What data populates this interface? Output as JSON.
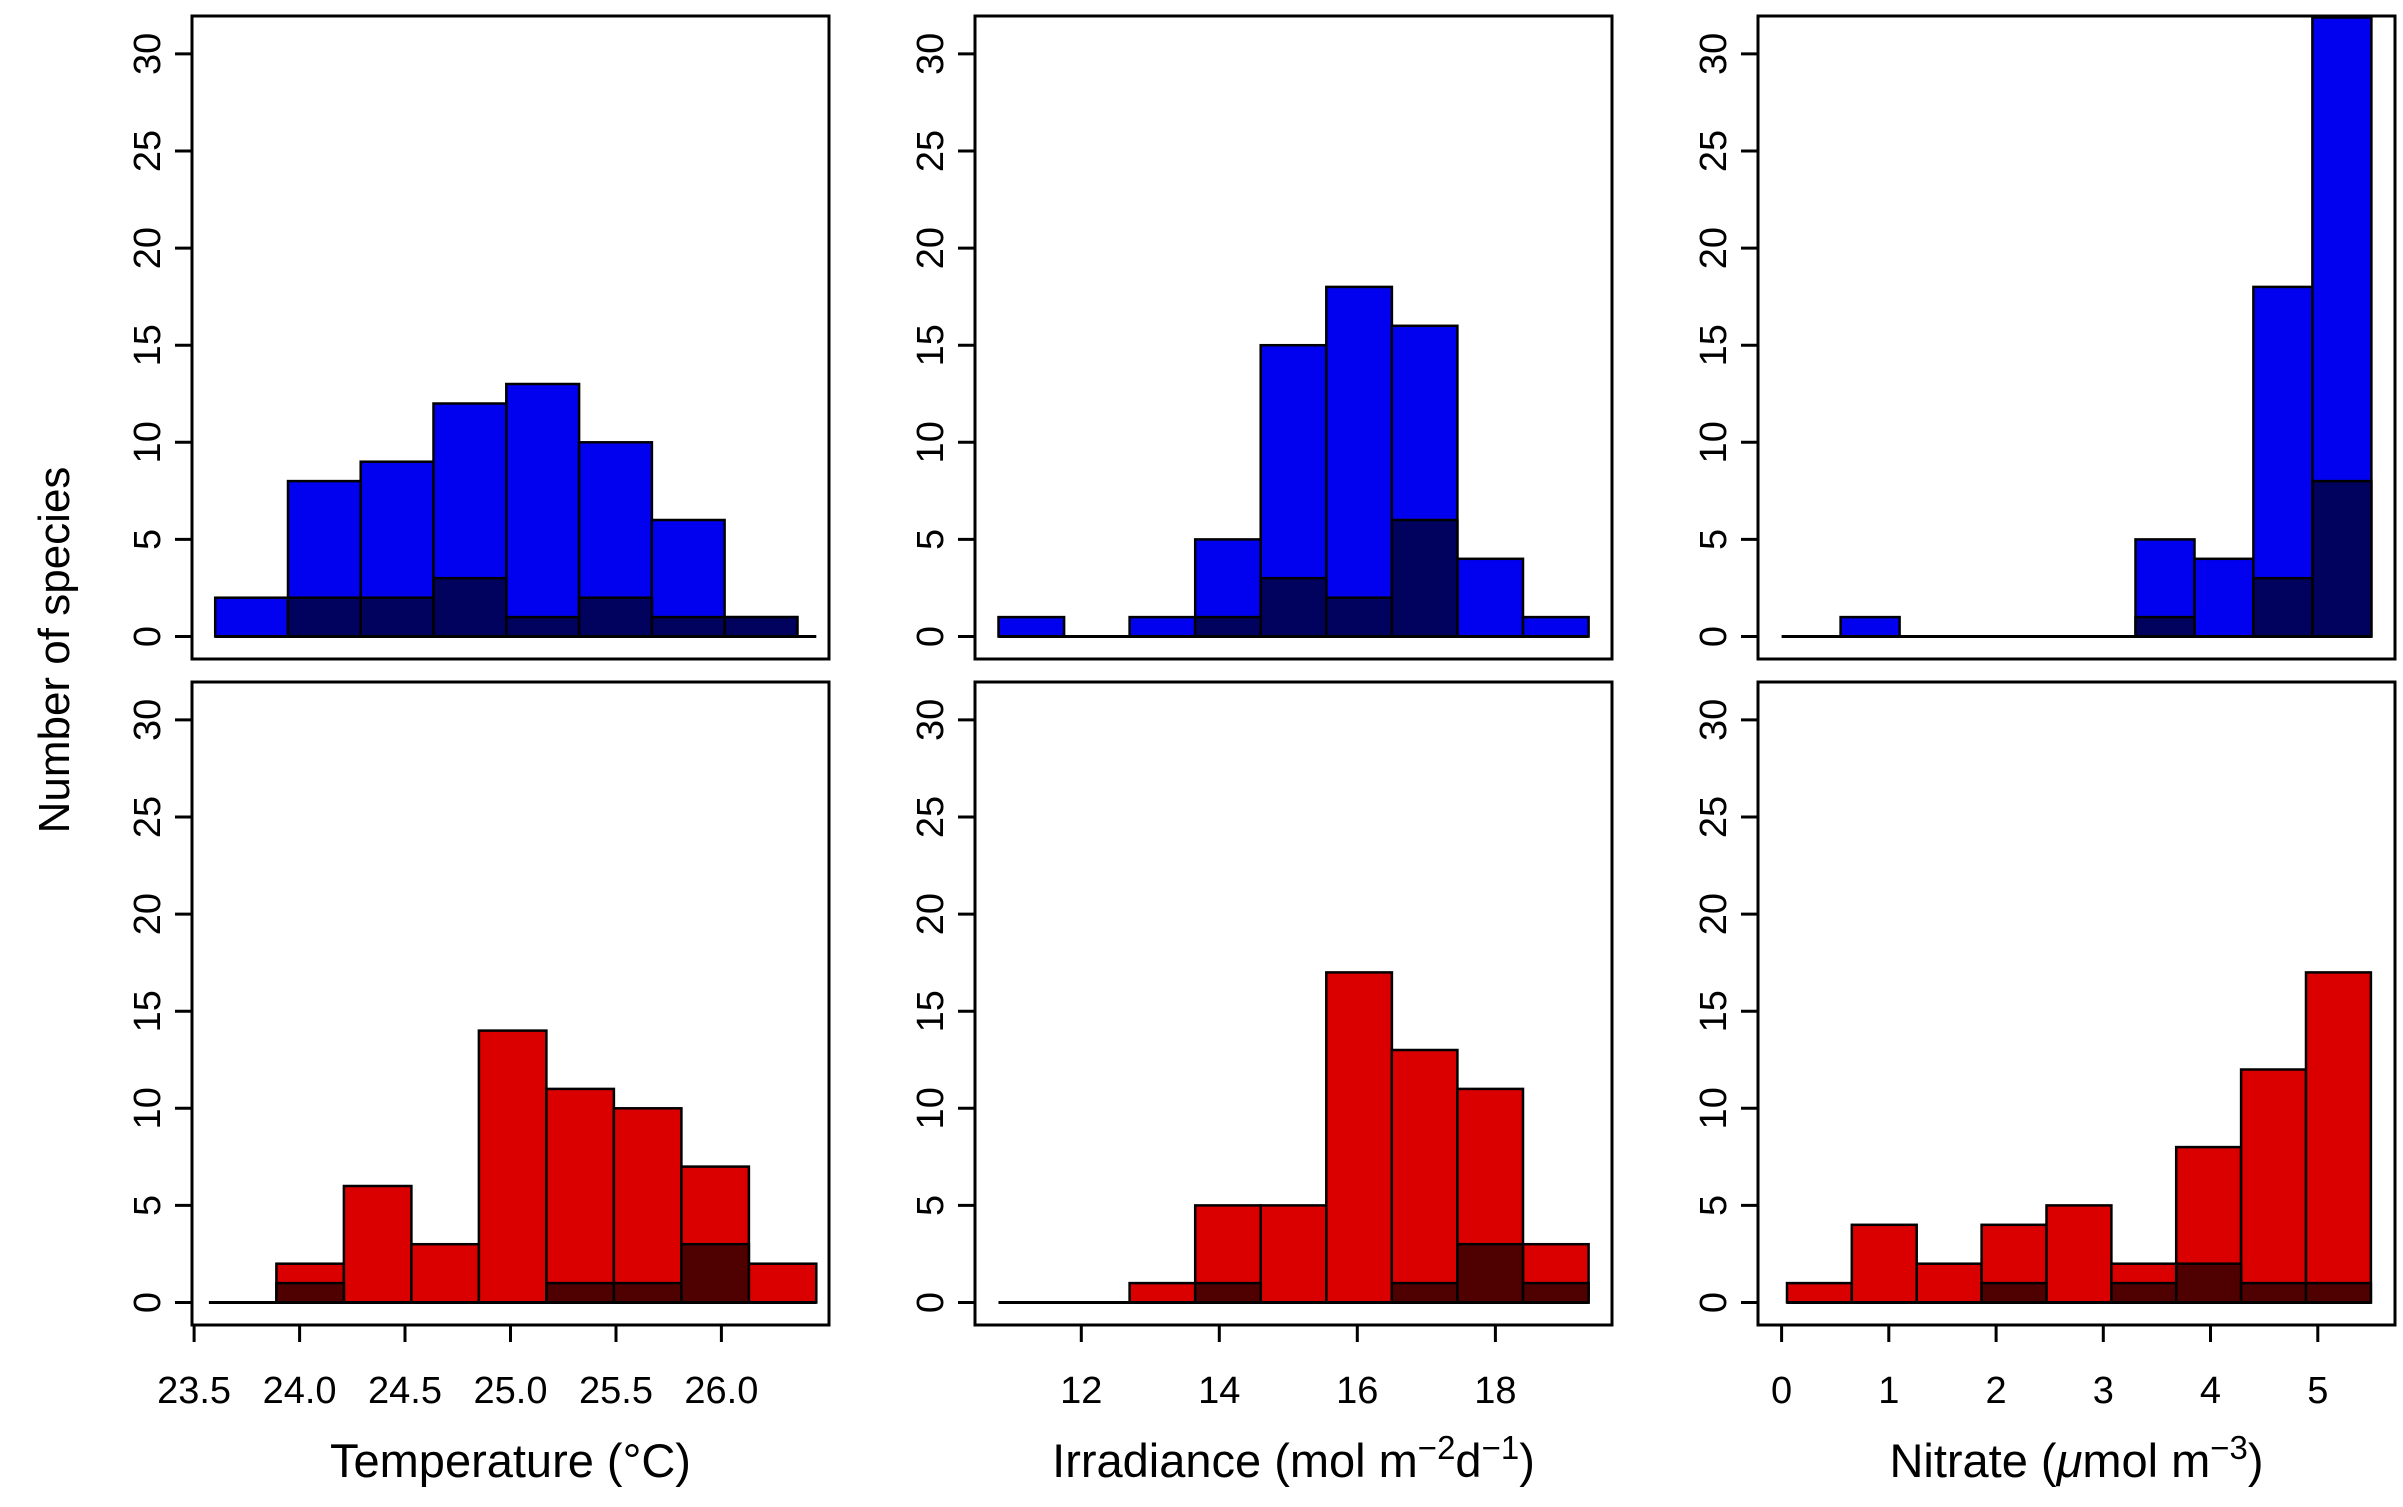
{
  "figure": {
    "ylab": "Number of species",
    "background": "#ffffff"
  },
  "colors": {
    "blue": "#0101F0",
    "navy": "#01015E",
    "red": "#DB0000",
    "darkred": "#4F0000",
    "frame": "#000000",
    "text": "#000000"
  },
  "chart_data": [
    {
      "id": "temperature-top",
      "type": "bar",
      "row": 0,
      "col": 0,
      "xlabel": "",
      "xlabel_segments": [],
      "show_x_axis": false,
      "x_ticks": [],
      "x_tick_labels": [],
      "y_ticks": [
        0,
        5,
        10,
        15,
        20,
        25,
        30
      ],
      "y_tick_labels": [
        "0",
        "5",
        "10",
        "15",
        "20",
        "25",
        "30"
      ],
      "xlim": [
        23.49,
        26.51
      ],
      "ylim": [
        0,
        33
      ],
      "baseline": [
        23.6,
        26.45
      ],
      "series": [
        {
          "name": "blue-histogram",
          "color_key": "blue",
          "bin_start": 23.6,
          "bin_width": 0.345,
          "values": [
            2,
            8,
            9,
            12,
            13,
            10,
            6,
            1
          ]
        },
        {
          "name": "dark-blue-overlay-histogram",
          "color_key": "navy",
          "bin_start": 23.6,
          "bin_width": 0.345,
          "values": [
            0,
            2,
            2,
            3,
            1,
            2,
            1,
            1
          ]
        }
      ]
    },
    {
      "id": "irradiance-top",
      "type": "bar",
      "row": 0,
      "col": 1,
      "xlabel": "",
      "xlabel_segments": [],
      "show_x_axis": false,
      "x_ticks": [],
      "x_tick_labels": [],
      "y_ticks": [
        0,
        5,
        10,
        15,
        20,
        25,
        30
      ],
      "y_tick_labels": [
        "0",
        "5",
        "10",
        "15",
        "20",
        "25",
        "30"
      ],
      "xlim": [
        10.46,
        19.69
      ],
      "ylim": [
        0,
        33
      ],
      "baseline": [
        10.8,
        19.35
      ],
      "series": [
        {
          "name": "blue-histogram",
          "color_key": "blue",
          "bin_start": 10.8,
          "bin_width": 0.95,
          "values": [
            1,
            0,
            1,
            5,
            15,
            18,
            16,
            4,
            1
          ]
        },
        {
          "name": "dark-blue-overlay-histogram",
          "color_key": "navy",
          "bin_start": 10.8,
          "bin_width": 0.95,
          "values": [
            0,
            0,
            0,
            1,
            3,
            2,
            6,
            0,
            0
          ]
        }
      ]
    },
    {
      "id": "nitrate-top",
      "type": "bar",
      "row": 0,
      "col": 2,
      "xlabel": "",
      "xlabel_segments": [],
      "show_x_axis": false,
      "x_ticks": [],
      "x_tick_labels": [],
      "y_ticks": [
        0,
        5,
        10,
        15,
        20,
        25,
        30
      ],
      "y_tick_labels": [
        "0",
        "5",
        "10",
        "15",
        "20",
        "25",
        "30"
      ],
      "xlim": [
        -0.22,
        5.72
      ],
      "ylim": [
        0,
        33
      ],
      "baseline": [
        0.0,
        5.5
      ],
      "series": [
        {
          "name": "blue-histogram",
          "color_key": "blue",
          "bin_start": 0.0,
          "bin_width": 0.55,
          "values": [
            0,
            1,
            0,
            0,
            0,
            0,
            5,
            4,
            18,
            33
          ]
        },
        {
          "name": "dark-blue-overlay-histogram",
          "color_key": "navy",
          "bin_start": 0.0,
          "bin_width": 0.55,
          "values": [
            0,
            0,
            0,
            0,
            0,
            0,
            1,
            0,
            3,
            8
          ]
        }
      ]
    },
    {
      "id": "temperature-bottom",
      "type": "bar",
      "row": 1,
      "col": 0,
      "xlabel": "Temperature (°C)",
      "xlabel_segments": [
        {
          "t": "Temperature (°C)"
        }
      ],
      "show_x_axis": true,
      "x_ticks": [
        23.5,
        24.0,
        24.5,
        25.0,
        25.5,
        26.0
      ],
      "x_tick_labels": [
        "23.5",
        "24.0",
        "24.5",
        "25.0",
        "25.5",
        "26.0"
      ],
      "y_ticks": [
        0,
        5,
        10,
        15,
        20,
        25,
        30
      ],
      "y_tick_labels": [
        "0",
        "5",
        "10",
        "15",
        "20",
        "25",
        "30"
      ],
      "xlim": [
        23.49,
        26.51
      ],
      "ylim": [
        0,
        33
      ],
      "baseline": [
        23.57,
        26.45
      ],
      "series": [
        {
          "name": "red-histogram",
          "color_key": "red",
          "bin_start": 23.57,
          "bin_width": 0.32,
          "values": [
            0,
            2,
            6,
            3,
            14,
            11,
            10,
            7,
            2
          ]
        },
        {
          "name": "dark-red-overlay-histogram",
          "color_key": "darkred",
          "bin_start": 23.57,
          "bin_width": 0.32,
          "values": [
            0,
            1,
            0,
            0,
            0,
            1,
            1,
            3,
            0
          ]
        }
      ]
    },
    {
      "id": "irradiance-bottom",
      "type": "bar",
      "row": 1,
      "col": 1,
      "xlabel": "Irradiance (mol m−2d−1)",
      "xlabel_segments": [
        {
          "t": "Irradiance (mol m"
        },
        {
          "t": "−2",
          "sup": true
        },
        {
          "t": "d"
        },
        {
          "t": "−1",
          "sup": true
        },
        {
          "t": ")"
        }
      ],
      "show_x_axis": true,
      "x_ticks": [
        12,
        14,
        16,
        18
      ],
      "x_tick_labels": [
        "12",
        "14",
        "16",
        "18"
      ],
      "y_ticks": [
        0,
        5,
        10,
        15,
        20,
        25,
        30
      ],
      "y_tick_labels": [
        "0",
        "5",
        "10",
        "15",
        "20",
        "25",
        "30"
      ],
      "xlim": [
        10.46,
        19.69
      ],
      "ylim": [
        0,
        33
      ],
      "baseline": [
        10.8,
        19.35
      ],
      "series": [
        {
          "name": "red-histogram",
          "color_key": "red",
          "bin_start": 10.8,
          "bin_width": 0.95,
          "values": [
            0,
            0,
            1,
            5,
            5,
            17,
            13,
            11,
            3
          ]
        },
        {
          "name": "dark-red-overlay-histogram",
          "color_key": "darkred",
          "bin_start": 10.8,
          "bin_width": 0.95,
          "values": [
            0,
            0,
            0,
            1,
            0,
            0,
            1,
            3,
            1
          ]
        }
      ]
    },
    {
      "id": "nitrate-bottom",
      "type": "bar",
      "row": 1,
      "col": 2,
      "xlabel": "Nitrate (μmol m−3)",
      "xlabel_segments": [
        {
          "t": "Nitrate ("
        },
        {
          "t": "μ",
          "italic": true
        },
        {
          "t": "mol m"
        },
        {
          "t": "−3",
          "sup": true
        },
        {
          "t": ")"
        }
      ],
      "show_x_axis": true,
      "x_ticks": [
        0,
        1,
        2,
        3,
        4,
        5
      ],
      "x_tick_labels": [
        "0",
        "1",
        "2",
        "3",
        "4",
        "5"
      ],
      "y_ticks": [
        0,
        5,
        10,
        15,
        20,
        25,
        30
      ],
      "y_tick_labels": [
        "0",
        "5",
        "10",
        "15",
        "20",
        "25",
        "30"
      ],
      "xlim": [
        -0.22,
        5.72
      ],
      "ylim": [
        0,
        33
      ],
      "baseline": [
        0.05,
        5.495
      ],
      "series": [
        {
          "name": "red-histogram",
          "color_key": "red",
          "bin_start": 0.05,
          "bin_width": 0.605,
          "values": [
            1,
            4,
            2,
            4,
            5,
            2,
            8,
            12,
            17
          ]
        },
        {
          "name": "dark-red-overlay-histogram",
          "color_key": "darkred",
          "bin_start": 0.05,
          "bin_width": 0.605,
          "values": [
            0,
            0,
            0,
            1,
            0,
            1,
            2,
            1,
            1
          ]
        }
      ]
    }
  ]
}
